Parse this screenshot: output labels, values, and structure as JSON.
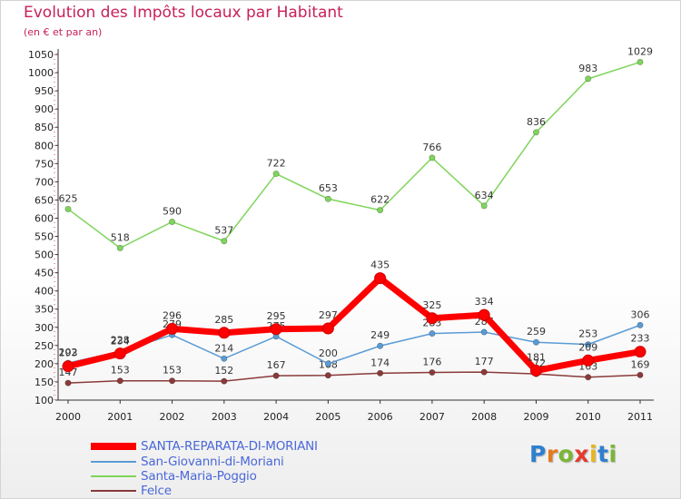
{
  "header": {
    "title": "Evolution des Impôts locaux par Habitant",
    "subtitle": "(en € et par an)"
  },
  "logo": {
    "letters": [
      "P",
      "r",
      "o",
      "x",
      "i",
      "t",
      "i"
    ],
    "colors": [
      "#2f7fd0",
      "#e57a1f",
      "#7ab635",
      "#e63a2e",
      "#e9b51c",
      "#2f7fd0",
      "#7ab635"
    ]
  },
  "chart_data": {
    "type": "line",
    "title": "Evolution des Impôts locaux par Habitant",
    "subtitle": "(en € et par an)",
    "xlabel": "",
    "ylabel": "",
    "categories": [
      "2000",
      "2001",
      "2002",
      "2003",
      "2004",
      "2005",
      "2006",
      "2007",
      "2008",
      "2009",
      "2010",
      "2011"
    ],
    "ylim": [
      100,
      1050
    ],
    "yticks": [
      100,
      150,
      200,
      250,
      300,
      350,
      400,
      450,
      500,
      550,
      600,
      650,
      700,
      750,
      800,
      850,
      900,
      950,
      1000,
      1050
    ],
    "grid": false,
    "legend_position": "bottom-left",
    "series": [
      {
        "name": "Santa-Maria-Poggio",
        "color": "#7fd45b",
        "values": [
          625,
          518,
          590,
          537,
          722,
          653,
          622,
          766,
          634,
          836,
          983,
          1029
        ],
        "labels": [
          "625",
          "518",
          "590",
          "537",
          "722",
          "653",
          "622",
          "766",
          "634",
          "836",
          "983",
          "1029"
        ]
      },
      {
        "name": "Felce",
        "color": "#8a3a3a",
        "values": [
          147,
          153,
          153,
          152,
          167,
          168,
          174,
          176,
          177,
          172,
          163,
          169
        ],
        "labels": [
          "147",
          "153",
          "153",
          "152",
          "167",
          "168",
          "174",
          "176",
          "177",
          "172",
          "163",
          "169"
        ]
      },
      {
        "name": "San-Giovanni-di-Moriani",
        "color": "#5b9bd5",
        "values": [
          202,
          234,
          279,
          214,
          275,
          200,
          249,
          283,
          287,
          259,
          253,
          306
        ],
        "labels": [
          "202",
          "234",
          "279",
          "214",
          "275",
          "200",
          "249",
          "283",
          "287",
          "259",
          "253",
          "306"
        ]
      },
      {
        "name": "SANTA-REPARATA-DI-MORIANI",
        "color": "#ff0000",
        "values": [
          193,
          228,
          296,
          285,
          295,
          297,
          435,
          325,
          334,
          181,
          209,
          233
        ],
        "labels": [
          "193",
          "228",
          "296",
          "285",
          "295",
          "297",
          "435",
          "325",
          "334",
          "181",
          "209",
          "233"
        ]
      }
    ],
    "legend": [
      {
        "name": "SANTA-REPARATA-DI-MORIANI",
        "color": "#ff0000"
      },
      {
        "name": "San-Giovanni-di-Moriani",
        "color": "#5b9bd5"
      },
      {
        "name": "Santa-Maria-Poggio",
        "color": "#7fd45b"
      },
      {
        "name": "Felce",
        "color": "#8a3a3a"
      }
    ]
  }
}
